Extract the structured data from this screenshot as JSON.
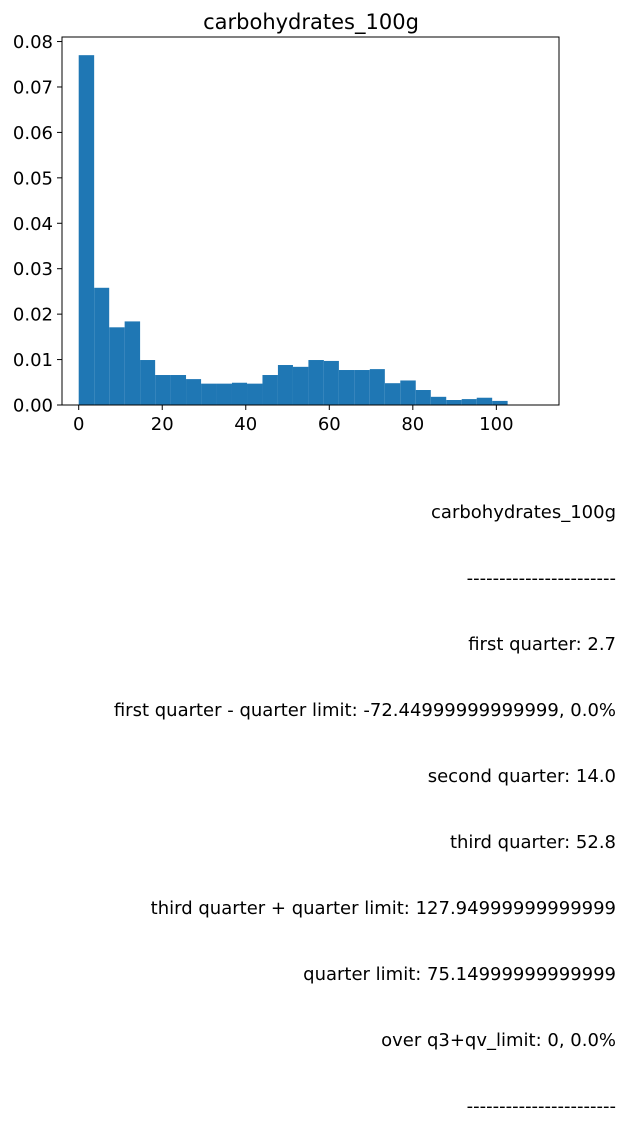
{
  "chart_data": {
    "type": "bar",
    "title": "carbohydrates_100g",
    "xlabel": "",
    "ylabel": "",
    "xlim": [
      -4.0,
      115.0
    ],
    "ylim": [
      0,
      0.081
    ],
    "bar_color": "#1f77b4",
    "grid": false,
    "xticks": [
      0,
      20,
      40,
      60,
      80,
      100
    ],
    "xtick_labels": [
      "0",
      "20",
      "40",
      "60",
      "80",
      "100"
    ],
    "yticks": [
      0.0,
      0.01,
      0.02,
      0.03,
      0.04,
      0.05,
      0.06,
      0.07,
      0.08
    ],
    "ytick_labels": [
      "0.00",
      "0.01",
      "0.02",
      "0.03",
      "0.04",
      "0.05",
      "0.06",
      "0.07",
      "0.08"
    ],
    "bins": [
      {
        "x0": 0.0,
        "x1": 3.7,
        "value": 0.077
      },
      {
        "x0": 3.7,
        "x1": 7.3,
        "value": 0.0258
      },
      {
        "x0": 7.3,
        "x1": 11.0,
        "value": 0.0171
      },
      {
        "x0": 11.0,
        "x1": 14.7,
        "value": 0.0184
      },
      {
        "x0": 14.7,
        "x1": 18.3,
        "value": 0.0099
      },
      {
        "x0": 18.3,
        "x1": 22.0,
        "value": 0.0066
      },
      {
        "x0": 22.0,
        "x1": 25.7,
        "value": 0.0066
      },
      {
        "x0": 25.7,
        "x1": 29.3,
        "value": 0.0057
      },
      {
        "x0": 29.3,
        "x1": 33.0,
        "value": 0.0047
      },
      {
        "x0": 33.0,
        "x1": 36.7,
        "value": 0.0047
      },
      {
        "x0": 36.7,
        "x1": 40.3,
        "value": 0.0049
      },
      {
        "x0": 40.3,
        "x1": 44.0,
        "value": 0.0047
      },
      {
        "x0": 44.0,
        "x1": 47.7,
        "value": 0.0066
      },
      {
        "x0": 47.7,
        "x1": 51.3,
        "value": 0.0088
      },
      {
        "x0": 51.3,
        "x1": 55.0,
        "value": 0.0084
      },
      {
        "x0": 55.0,
        "x1": 58.7,
        "value": 0.0099
      },
      {
        "x0": 58.7,
        "x1": 62.3,
        "value": 0.0097
      },
      {
        "x0": 62.3,
        "x1": 66.0,
        "value": 0.0077
      },
      {
        "x0": 66.0,
        "x1": 69.7,
        "value": 0.0077
      },
      {
        "x0": 69.7,
        "x1": 73.3,
        "value": 0.0079
      },
      {
        "x0": 73.3,
        "x1": 77.0,
        "value": 0.0048
      },
      {
        "x0": 77.0,
        "x1": 80.7,
        "value": 0.0054
      },
      {
        "x0": 80.7,
        "x1": 84.3,
        "value": 0.0033
      },
      {
        "x0": 84.3,
        "x1": 88.0,
        "value": 0.0018
      },
      {
        "x0": 88.0,
        "x1": 91.7,
        "value": 0.0011
      },
      {
        "x0": 91.7,
        "x1": 95.3,
        "value": 0.0013
      },
      {
        "x0": 95.3,
        "x1": 99.0,
        "value": 0.0016
      },
      {
        "x0": 99.0,
        "x1": 102.7,
        "value": 0.0009
      },
      {
        "x0": 102.7,
        "x1": 106.3,
        "value": 0.0
      },
      {
        "x0": 106.3,
        "x1": 110.0,
        "value": 0.0
      }
    ]
  },
  "stats": {
    "lines": [
      "carbohydrates_100g",
      "-----------------------",
      "first quarter: 2.7",
      "first quarter - quarter limit: -72.44999999999999, 0.0%",
      "second quarter: 14.0",
      "third quarter: 52.8",
      "third quarter + quarter limit: 127.94999999999999",
      "quarter limit: 75.14999999999999",
      "over q3+qv_limit: 0, 0.0%",
      "-----------------------"
    ]
  }
}
